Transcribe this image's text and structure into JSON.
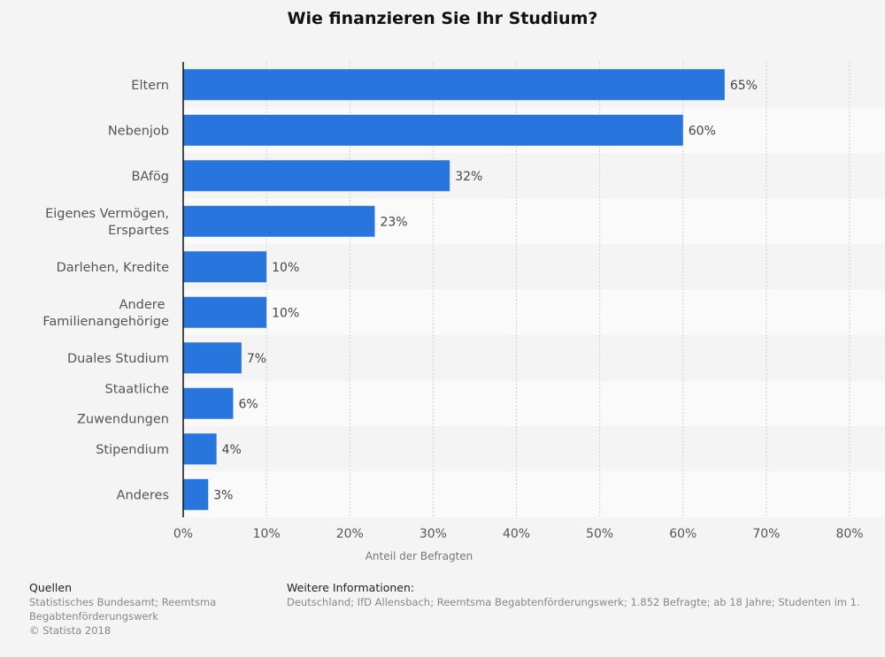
{
  "chart_data": {
    "type": "bar",
    "orientation": "horizontal",
    "title": "Wie finanzieren Sie Ihr Studium?",
    "categories": [
      "Eltern",
      "Nebenjob",
      "BAfög",
      "Eigenes Vermögen,\nErspartes",
      "Darlehen, Kredite",
      "Andere \nFamilienangehörige",
      "Duales Studium",
      "Staatliche\n\nZuwendungen",
      "Stipendium",
      "Anderes"
    ],
    "values": [
      65,
      60,
      32,
      23,
      10,
      10,
      7,
      6,
      4,
      3
    ],
    "data_labels": [
      "65%",
      "60%",
      "32%",
      "23%",
      "10%",
      "10%",
      "7%",
      "6%",
      "4%",
      "3%"
    ],
    "xlabel": "Anteil der Befragten",
    "ylabel": "",
    "xlim": [
      0,
      80
    ],
    "xticks": [
      0,
      10,
      20,
      30,
      40,
      50,
      60,
      70,
      80
    ],
    "xtick_labels": [
      "0%",
      "10%",
      "20%",
      "30%",
      "40%",
      "50%",
      "60%",
      "70%",
      "80%"
    ],
    "grid": true,
    "bar_color": "#2876dd"
  },
  "footer": {
    "sources_heading": "Quellen",
    "sources_lines": [
      "Statistisches Bundesamt; Reemtsma",
      "Begabtenförderungswerk",
      "© Statista 2018"
    ],
    "info_heading": "Weitere Informationen:",
    "info_text": "Deutschland; IfD Allensbach; Reemtsma Begabtenförderungswerk; 1.852 Befragte; ab 18 Jahre; Studenten im 1."
  }
}
